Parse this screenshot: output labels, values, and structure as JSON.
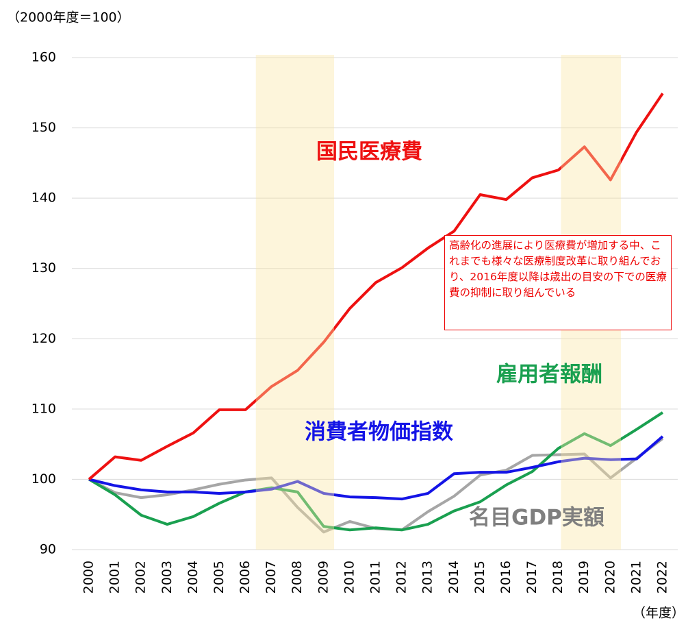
{
  "chart_data": {
    "type": "line",
    "y_axis_label": "（2000年度＝100）",
    "x_axis_label": "（年度）",
    "x": [
      2000,
      2001,
      2002,
      2003,
      2004,
      2005,
      2006,
      2007,
      2008,
      2009,
      2010,
      2011,
      2012,
      2013,
      2014,
      2015,
      2016,
      2017,
      2018,
      2019,
      2020,
      2021,
      2022
    ],
    "xlim": [
      2000,
      2022
    ],
    "ylim": [
      90,
      160
    ],
    "yticks": [
      90,
      100,
      110,
      120,
      130,
      140,
      150,
      160
    ],
    "grid": true,
    "shaded_ranges": [
      [
        2006.4,
        2009.4
      ],
      [
        2018.1,
        2020.4
      ]
    ],
    "series": [
      {
        "name": "名目GDP実額",
        "color": "#a6a6a6",
        "values": [
          100,
          98.1,
          97.4,
          97.8,
          98.5,
          99.3,
          99.9,
          100.2,
          96.0,
          92.5,
          94.0,
          93.0,
          92.8,
          95.4,
          97.6,
          100.6,
          101.3,
          103.4,
          103.5,
          103.6,
          100.2,
          103.0,
          105.8
        ]
      },
      {
        "name": "雇用者報酬",
        "color": "#1aa050",
        "values": [
          100,
          97.8,
          94.9,
          93.6,
          94.7,
          96.6,
          98.2,
          98.8,
          98.2,
          93.3,
          92.8,
          93.1,
          92.8,
          93.6,
          95.5,
          96.8,
          99.2,
          101.1,
          104.4,
          106.5,
          104.8,
          107.1,
          109.5
        ]
      },
      {
        "name": "消費者物価指数",
        "color": "#1414e6",
        "values": [
          100,
          99.1,
          98.5,
          98.2,
          98.2,
          98.0,
          98.2,
          98.6,
          99.7,
          98.0,
          97.5,
          97.4,
          97.2,
          98.0,
          100.8,
          101.0,
          101.0,
          101.7,
          102.5,
          103.0,
          102.8,
          102.9,
          106.1
        ]
      },
      {
        "name": "国民医療費",
        "color": "#ee1111",
        "values": [
          100,
          103.2,
          102.7,
          104.7,
          106.6,
          109.9,
          109.9,
          113.2,
          115.5,
          119.5,
          124.3,
          128.0,
          130.1,
          132.9,
          135.3,
          140.5,
          139.8,
          142.9,
          144.0,
          147.3,
          142.6,
          149.4,
          154.9
        ]
      }
    ],
    "annotation": "高齢化の進展により医療費が増加する中、これまでも様々な医療制度改革に取り組んでおり、2016年度以降は歳出の目安の下での医療費の抑制に取り組んでいる"
  }
}
